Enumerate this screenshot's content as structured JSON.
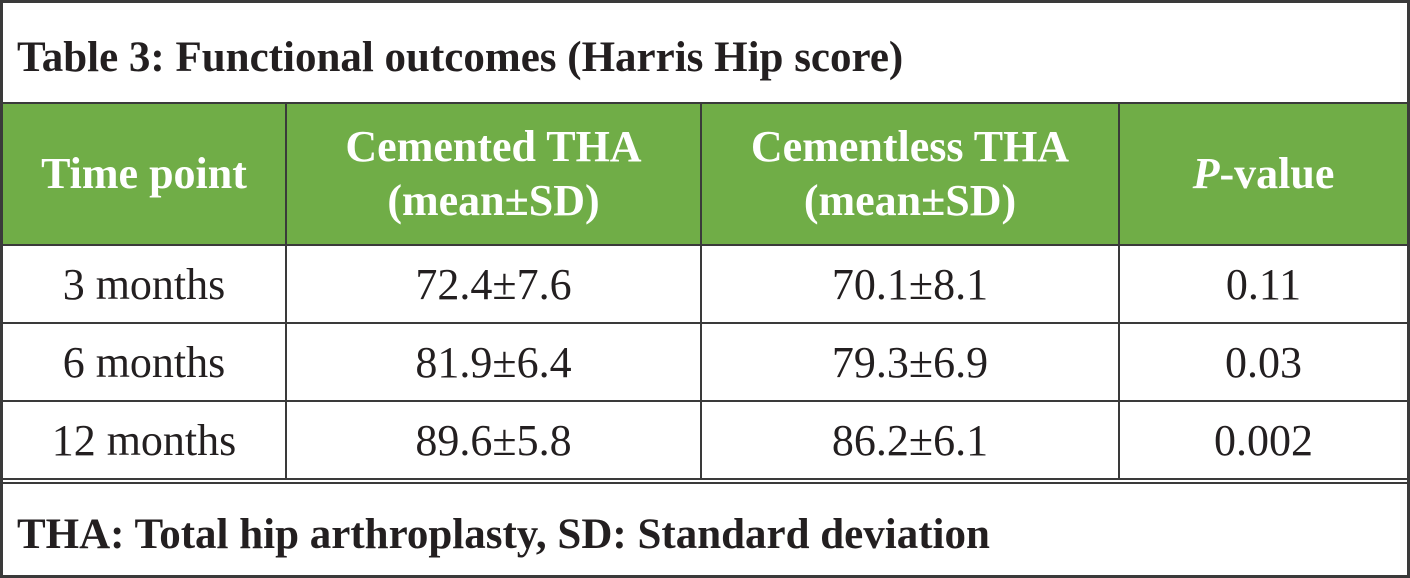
{
  "title": "Table 3: Functional outcomes (Harris Hip score)",
  "table": {
    "header": [
      "Time point",
      "Cemented THA (mean±SD)",
      "Cementless THA (mean±SD)",
      "P-value"
    ],
    "rows": [
      [
        "3 months",
        "72.4±7.6",
        "70.1±8.1",
        "0.11"
      ],
      [
        "6 months",
        "81.9±6.4",
        "79.3±6.9",
        "0.03"
      ],
      [
        "12 months",
        "89.6±5.8",
        "86.2±6.1",
        "0.002"
      ]
    ]
  },
  "footnote": "THA: Total hip arthroplasty, SD: Standard deviation"
}
